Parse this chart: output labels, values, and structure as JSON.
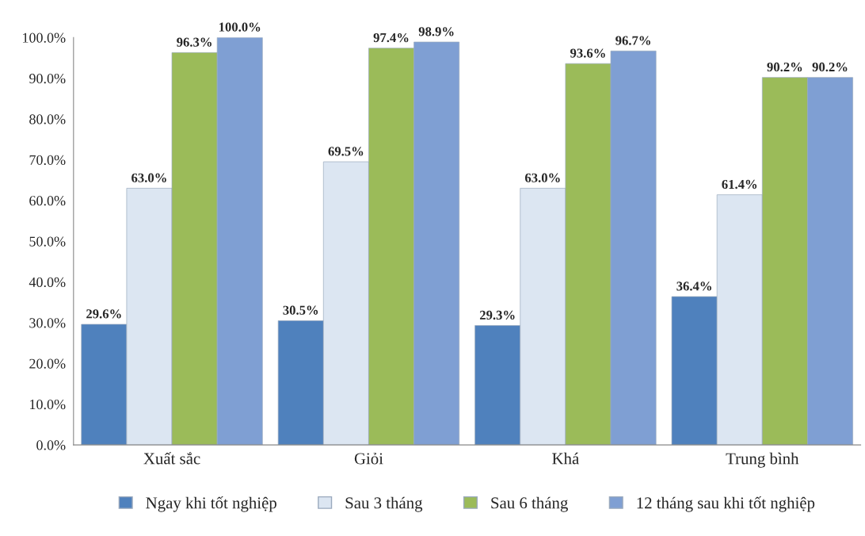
{
  "chart_data": {
    "type": "bar",
    "categories": [
      "Xuất sắc",
      "Giỏi",
      "Khá",
      "Trung bình"
    ],
    "series": [
      {
        "name": "Ngay khi tốt nghiệp",
        "color": "#4f81bd",
        "values": [
          29.6,
          30.5,
          29.3,
          36.4
        ],
        "value_labels": [
          "29.6%",
          "30.5%",
          "29.3%",
          "36.4%"
        ]
      },
      {
        "name": "Sau 3 tháng",
        "color": "#dce6f2",
        "values": [
          63.0,
          69.5,
          63.0,
          61.4
        ],
        "value_labels": [
          "63.0%",
          "69.5%",
          "63.0%",
          "61.4%"
        ]
      },
      {
        "name": "Sau 6 tháng",
        "color": "#9bbb59",
        "values": [
          96.3,
          97.4,
          93.6,
          90.2
        ],
        "value_labels": [
          "96.3%",
          "97.4%",
          "93.6%",
          "90.2%"
        ]
      },
      {
        "name": "12 tháng sau khi tốt nghiệp",
        "color": "#7f9fd3",
        "values": [
          100.0,
          98.9,
          96.7,
          90.2
        ],
        "value_labels": [
          "100.0%",
          "98.9%",
          "96.7%",
          "90.2%"
        ]
      }
    ],
    "ylim": [
      0,
      100
    ],
    "yticks": [
      {
        "value": 0,
        "label": "0.0%"
      },
      {
        "value": 10,
        "label": "10.0%"
      },
      {
        "value": 20,
        "label": "20.0%"
      },
      {
        "value": 30,
        "label": "30.0%"
      },
      {
        "value": 40,
        "label": "40.0%"
      },
      {
        "value": 50,
        "label": "50.0%"
      },
      {
        "value": 60,
        "label": "60.0%"
      },
      {
        "value": 70,
        "label": "70.0%"
      },
      {
        "value": 80,
        "label": "80.0%"
      },
      {
        "value": 90,
        "label": "90.0%"
      },
      {
        "value": 100,
        "label": "100.0%"
      }
    ],
    "grid": false,
    "legend": "bottom"
  }
}
